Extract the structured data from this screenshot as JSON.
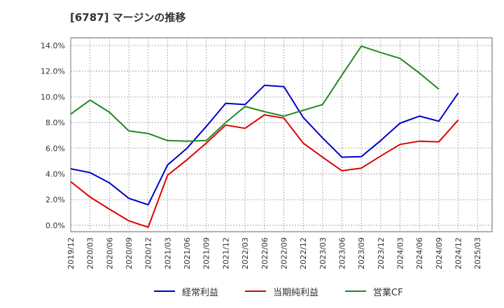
{
  "chart_data": {
    "type": "line",
    "title": "[6787]  マージンの推移",
    "x": [
      "2019/12",
      "2020/03",
      "2020/06",
      "2020/09",
      "2020/12",
      "2021/03",
      "2021/06",
      "2021/09",
      "2021/12",
      "2022/03",
      "2022/06",
      "2022/09",
      "2022/12",
      "2023/03",
      "2023/06",
      "2023/09",
      "2023/12",
      "2024/03",
      "2024/06",
      "2024/09",
      "2024/12",
      "2025/03"
    ],
    "y_ticks": [
      "0.0%",
      "2.0%",
      "4.0%",
      "6.0%",
      "8.0%",
      "10.0%",
      "12.0%",
      "14.0%"
    ],
    "ylim": [
      -0.5,
      14.6
    ],
    "grid": true,
    "legend_position": "bottom",
    "series": [
      {
        "name": "経常利益",
        "color": "#0000cc",
        "values": [
          4.4,
          4.1,
          3.3,
          2.1,
          1.6,
          4.7,
          6.0,
          7.7,
          9.5,
          9.4,
          10.9,
          10.8,
          8.4,
          6.8,
          5.3,
          5.35,
          6.6,
          7.95,
          8.5,
          8.1,
          10.3,
          null
        ]
      },
      {
        "name": "当期純利益",
        "color": "#dd0000",
        "values": [
          3.4,
          2.2,
          1.25,
          0.35,
          -0.15,
          3.9,
          5.1,
          6.4,
          7.8,
          7.55,
          8.6,
          8.35,
          6.4,
          5.3,
          4.25,
          4.45,
          5.4,
          6.3,
          6.55,
          6.5,
          8.2,
          null
        ]
      },
      {
        "name": "営業CF",
        "color": "#228822",
        "values": [
          8.65,
          9.75,
          8.8,
          7.35,
          7.15,
          6.6,
          6.55,
          6.6,
          8.0,
          9.25,
          8.85,
          8.5,
          8.95,
          9.4,
          11.7,
          13.95,
          13.45,
          13.0,
          11.85,
          10.6,
          null,
          null
        ]
      }
    ]
  }
}
